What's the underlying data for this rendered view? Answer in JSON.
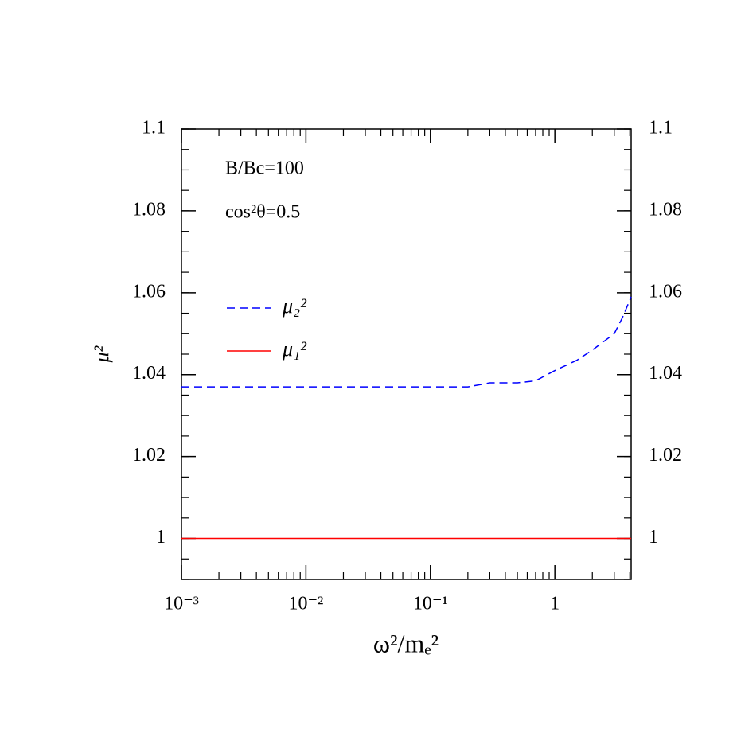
{
  "chart_data": {
    "type": "line",
    "xlabel": "ω²/mₑ²",
    "ylabel": "μ²",
    "annotations": [
      "B/Bc=100",
      "cos²θ=0.5"
    ],
    "xscale": "log",
    "xlim": [
      0.001,
      4.1
    ],
    "ylim": [
      0.99,
      1.1
    ],
    "xticks": [
      {
        "value": 0.001,
        "label": "10⁻³"
      },
      {
        "value": 0.01,
        "label": "10⁻²"
      },
      {
        "value": 0.1,
        "label": "10⁻¹"
      },
      1
    ],
    "yticks": [
      1,
      1.02,
      1.04,
      1.06,
      1.08,
      1.1
    ],
    "series": [
      {
        "name": "μ₂²",
        "color": "#0000ff",
        "dash": true,
        "x": [
          0.001,
          0.01,
          0.1,
          0.2,
          0.3,
          0.5,
          0.7,
          1,
          1.5,
          2,
          3,
          3.5,
          4.1
        ],
        "values": [
          1.037,
          1.037,
          1.037,
          1.037,
          1.038,
          1.038,
          1.0385,
          1.041,
          1.0435,
          1.046,
          1.05,
          1.054,
          1.059
        ]
      },
      {
        "name": "μ₁²",
        "color": "#ff0000",
        "dash": false,
        "x": [
          0.001,
          4.1
        ],
        "values": [
          1,
          1
        ]
      }
    ]
  }
}
